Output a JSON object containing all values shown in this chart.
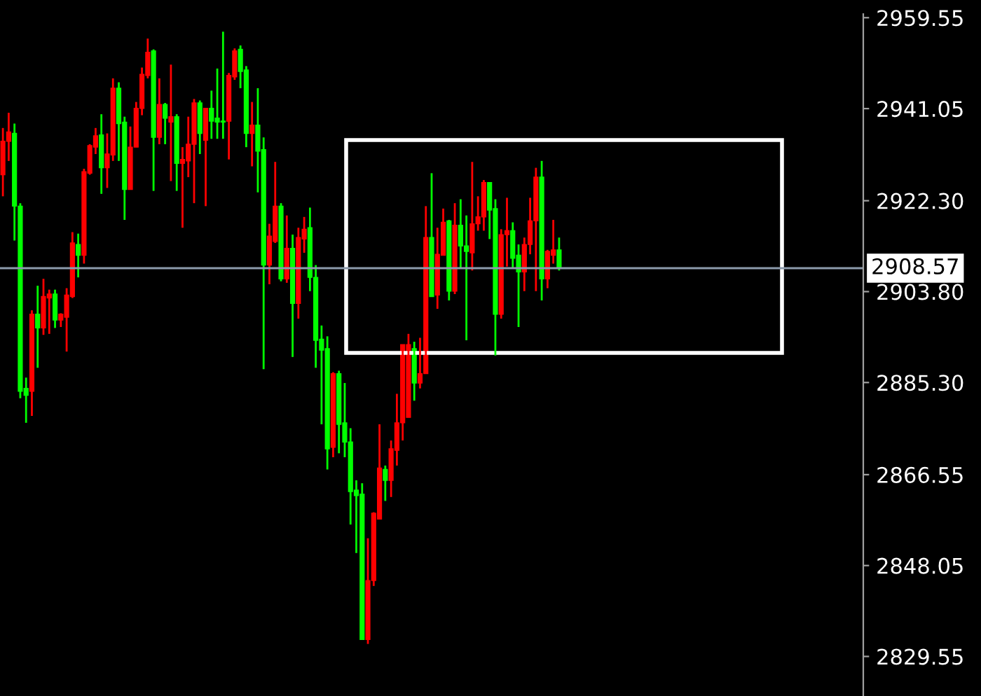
{
  "chart_data": {
    "type": "candlestick",
    "categories": [
      null,
      null,
      null,
      null,
      null,
      null,
      null,
      null,
      null,
      null,
      null,
      null,
      null,
      null,
      null,
      null,
      null,
      null,
      null,
      null,
      null,
      null,
      null,
      null,
      null,
      null,
      null,
      null,
      null,
      null,
      null,
      null,
      null,
      null,
      null,
      null,
      null,
      null,
      null,
      null,
      null,
      null,
      null,
      null,
      null,
      null,
      null,
      null,
      null,
      null,
      null,
      null,
      null,
      null,
      null,
      null,
      null,
      null,
      null,
      null,
      null,
      null,
      null,
      null,
      null,
      null,
      null,
      null,
      null,
      null,
      null,
      null,
      null,
      null,
      null,
      null,
      null,
      null,
      null,
      null,
      null,
      null,
      null,
      null,
      null,
      null,
      null,
      null,
      null,
      null,
      null,
      null,
      null,
      null,
      null,
      null,
      null,
      null,
      null,
      null,
      null,
      null,
      null,
      null,
      null,
      null,
      null,
      null,
      null,
      null,
      null,
      null,
      null,
      null,
      null,
      null,
      null,
      null,
      null,
      null,
      null,
      null,
      null,
      null,
      null,
      null,
      null,
      null,
      null,
      null,
      null,
      null,
      null,
      null,
      null,
      null,
      null,
      null,
      null,
      null,
      null,
      null,
      null,
      null,
      null,
      null,
      null,
      null,
      null
    ],
    "ohlc": [
      [
        2927.6,
        2937.1,
        2923.2,
        2934.4
      ],
      [
        2934.4,
        2940.2,
        2930.4,
        2936.3
      ],
      [
        2936.0,
        2938.0,
        2914.2,
        2921.2
      ],
      [
        2921.2,
        2921.8,
        2882.1,
        2883.5
      ],
      [
        2884.1,
        2886.3,
        2877.1,
        2882.7
      ],
      [
        2883.5,
        2900.0,
        2878.5,
        2899.2
      ],
      [
        2899.2,
        2905.0,
        2888.3,
        2896.4
      ],
      [
        2896.4,
        2906.4,
        2895.0,
        2902.8
      ],
      [
        2902.5,
        2904.2,
        2895.2,
        2903.3
      ],
      [
        2903.3,
        2904.2,
        2896.4,
        2898.0
      ],
      [
        2898.0,
        2899.4,
        2896.6,
        2899.2
      ],
      [
        2898.6,
        2904.5,
        2891.6,
        2903.1
      ],
      [
        2902.8,
        2915.9,
        2902.5,
        2913.7
      ],
      [
        2913.4,
        2915.6,
        2906.7,
        2911.2
      ],
      [
        2911.2,
        2928.8,
        2909.5,
        2928.2
      ],
      [
        2927.9,
        2933.8,
        2927.6,
        2933.5
      ],
      [
        2933.2,
        2937.1,
        2931.8,
        2935.5
      ],
      [
        2935.7,
        2939.9,
        2923.7,
        2929.0
      ],
      [
        2929.0,
        2936.0,
        2924.9,
        2931.8
      ],
      [
        2931.6,
        2947.2,
        2930.4,
        2945.2
      ],
      [
        2945.2,
        2946.4,
        2930.4,
        2938.0
      ],
      [
        2938.3,
        2939.4,
        2918.4,
        2924.6
      ],
      [
        2924.6,
        2937.4,
        2924.6,
        2933.2
      ],
      [
        2933.2,
        2942.4,
        2933.2,
        2941.1
      ],
      [
        2941.1,
        2949.4,
        2939.7,
        2948.0
      ],
      [
        2947.8,
        2955.3,
        2947.2,
        2952.5
      ],
      [
        2952.8,
        2953.1,
        2924.3,
        2935.2
      ],
      [
        2935.2,
        2947.2,
        2933.8,
        2941.9
      ],
      [
        2941.9,
        2942.2,
        2933.8,
        2939.1
      ],
      [
        2938.3,
        2950.0,
        2926.3,
        2939.4
      ],
      [
        2939.4,
        2939.9,
        2924.3,
        2929.9
      ],
      [
        2929.9,
        2933.2,
        2916.8,
        2930.7
      ],
      [
        2930.4,
        2939.4,
        2927.1,
        2933.8
      ],
      [
        2933.8,
        2943.0,
        2921.8,
        2942.2
      ],
      [
        2942.2,
        2942.7,
        2931.8,
        2936.0
      ],
      [
        2934.6,
        2941.1,
        2921.2,
        2941.1
      ],
      [
        2941.1,
        2944.7,
        2934.9,
        2938.5
      ],
      [
        2939.1,
        2949.2,
        2934.9,
        2938.3
      ],
      [
        2938.5,
        2956.7,
        2934.9,
        2938.3
      ],
      [
        2938.5,
        2948.3,
        2930.7,
        2947.8
      ],
      [
        2947.5,
        2953.3,
        2946.9,
        2952.8
      ],
      [
        2953.1,
        2953.9,
        2945.2,
        2948.6
      ],
      [
        2948.9,
        2949.7,
        2933.2,
        2936.0
      ],
      [
        2936.0,
        2942.4,
        2929.3,
        2937.7
      ],
      [
        2937.7,
        2945.2,
        2924.0,
        2932.4
      ],
      [
        2932.7,
        2935.2,
        2888.0,
        2909.2
      ],
      [
        2909.2,
        2917.6,
        2905.3,
        2915.1
      ],
      [
        2914.0,
        2930.2,
        2913.7,
        2921.2
      ],
      [
        2921.2,
        2921.8,
        2905.9,
        2906.4
      ],
      [
        2906.4,
        2919.3,
        2905.6,
        2912.6
      ],
      [
        2912.6,
        2915.4,
        2890.5,
        2901.4
      ],
      [
        2901.4,
        2916.8,
        2898.3,
        2914.8
      ],
      [
        2914.5,
        2919.0,
        2911.7,
        2916.5
      ],
      [
        2916.8,
        2920.9,
        2903.9,
        2906.7
      ],
      [
        2906.7,
        2909.2,
        2888.3,
        2893.9
      ],
      [
        2894.1,
        2896.9,
        2876.8,
        2891.9
      ],
      [
        2892.2,
        2894.7,
        2867.6,
        2871.8
      ],
      [
        2872.1,
        2887.4,
        2870.1,
        2887.1
      ],
      [
        2887.1,
        2887.7,
        2870.9,
        2876.8
      ],
      [
        2877.1,
        2885.2,
        2870.1,
        2873.2
      ],
      [
        2873.2,
        2876.0,
        2856.4,
        2863.1
      ],
      [
        2863.4,
        2865.4,
        2850.6,
        2862.3
      ],
      [
        2862.6,
        2864.8,
        2833.0,
        2833.0
      ],
      [
        2833.0,
        2853.6,
        2832.1,
        2845.0
      ],
      [
        2845.0,
        2858.9,
        2843.9,
        2858.7
      ],
      [
        2857.5,
        2876.8,
        2857.5,
        2867.9
      ],
      [
        2867.6,
        2868.4,
        2861.2,
        2865.4
      ],
      [
        2865.4,
        2873.5,
        2862.0,
        2871.8
      ],
      [
        2871.5,
        2883.0,
        2868.4,
        2877.1
      ],
      [
        2877.1,
        2893.0,
        2873.5,
        2893.0
      ],
      [
        2878.2,
        2895.2,
        2878.2,
        2893.0
      ],
      [
        2892.2,
        2893.6,
        2881.6,
        2885.2
      ],
      [
        2885.2,
        2894.4,
        2884.1,
        2887.1
      ],
      [
        2887.1,
        2921.2,
        2887.1,
        2914.8
      ],
      [
        2914.8,
        2927.9,
        2902.8,
        2902.8
      ],
      [
        2903.1,
        2916.8,
        2900.3,
        2911.4
      ],
      [
        2911.2,
        2920.7,
        2911.2,
        2917.9
      ],
      [
        2918.2,
        2918.4,
        2902.0,
        2903.9
      ],
      [
        2903.9,
        2921.8,
        2903.3,
        2917.3
      ],
      [
        2917.3,
        2922.6,
        2908.7,
        2913.1
      ],
      [
        2913.1,
        2919.3,
        2893.9,
        2912.0
      ],
      [
        2911.7,
        2930.2,
        2908.1,
        2917.6
      ],
      [
        2917.6,
        2923.2,
        2916.2,
        2919.0
      ],
      [
        2919.0,
        2926.5,
        2916.2,
        2926.0
      ],
      [
        2926.0,
        2926.0,
        2914.5,
        2920.4
      ],
      [
        2920.7,
        2922.6,
        2890.8,
        2899.2
      ],
      [
        2899.2,
        2916.5,
        2898.3,
        2915.4
      ],
      [
        2915.4,
        2922.9,
        2908.9,
        2916.2
      ],
      [
        2916.2,
        2917.9,
        2908.7,
        2910.6
      ],
      [
        2911.2,
        2913.4,
        2896.6,
        2907.8
      ],
      [
        2907.8,
        2914.8,
        2903.9,
        2913.4
      ],
      [
        2913.4,
        2922.9,
        2911.4,
        2918.2
      ],
      [
        2918.2,
        2929.0,
        2903.9,
        2927.1
      ],
      [
        2927.1,
        2930.4,
        2902.0,
        2906.4
      ],
      [
        2906.4,
        2912.3,
        2904.5,
        2912.0
      ],
      [
        2911.2,
        2918.4,
        2909.5,
        2912.3
      ],
      [
        2912.3,
        2914.8,
        2908.1,
        2908.6
      ],
      null,
      null,
      null,
      null,
      null,
      null,
      null,
      null,
      null,
      null,
      null,
      null,
      null,
      null,
      null,
      null,
      null,
      null,
      null,
      null,
      null,
      null,
      null,
      null,
      null,
      null,
      null,
      null,
      null,
      null,
      null,
      null,
      null,
      null,
      null,
      null,
      null,
      null,
      null,
      null,
      null,
      null,
      null,
      null,
      null,
      null,
      null,
      null,
      null,
      null,
      null,
      null
    ],
    "colors": [
      "#ff0000",
      "#ff0000",
      "#00ff00",
      "#00ff00",
      "#00ff00",
      "#ff0000",
      "#00ff00",
      "#ff0000",
      "#ff0000",
      "#00ff00",
      "#ff0000",
      "#ff0000",
      "#ff0000",
      "#00ff00",
      "#ff0000",
      "#ff0000",
      "#ff0000",
      "#00ff00",
      "#ff0000",
      "#ff0000",
      "#00ff00",
      "#00ff00",
      "#ff0000",
      "#ff0000",
      "#ff0000",
      "#ff0000",
      "#00ff00",
      "#ff0000",
      "#00ff00",
      "#ff0000",
      "#00ff00",
      "#ff0000",
      "#ff0000",
      "#ff0000",
      "#00ff00",
      "#ff0000",
      "#00ff00",
      "#00ff00",
      "#00ff00",
      "#ff0000",
      "#ff0000",
      "#00ff00",
      "#00ff00",
      "#ff0000",
      "#00ff00",
      "#00ff00",
      "#ff0000",
      "#ff0000",
      "#00ff00",
      "#ff0000",
      "#00ff00",
      "#ff0000",
      "#ff0000",
      "#00ff00",
      "#00ff00",
      "#00ff00",
      "#00ff00",
      "#ff0000",
      "#00ff00",
      "#00ff00",
      "#00ff00",
      "#00ff00",
      "#00ff00",
      "#ff0000",
      "#ff0000",
      "#ff0000",
      "#00ff00",
      "#ff0000",
      "#ff0000",
      "#ff0000",
      "#ff0000",
      "#00ff00",
      "#ff0000",
      "#ff0000",
      "#00ff00",
      "#ff0000",
      "#ff0000",
      "#00ff00",
      "#ff0000",
      "#00ff00",
      "#00ff00",
      "#ff0000",
      "#ff0000",
      "#ff0000",
      "#00ff00",
      "#00ff00",
      "#ff0000",
      "#ff0000",
      "#00ff00",
      "#00ff00",
      "#ff0000",
      "#ff0000",
      "#ff0000",
      "#00ff00",
      "#ff0000",
      "#ff0000",
      "#00ff00",
      null,
      null,
      null,
      null,
      null,
      null,
      null,
      null,
      null,
      null,
      null,
      null,
      null,
      null,
      null,
      null,
      null,
      null,
      null,
      null,
      null,
      null,
      null,
      null,
      null,
      null,
      null,
      null,
      null,
      null,
      null,
      null,
      null,
      null,
      null,
      null,
      null,
      null,
      null,
      null,
      null,
      null,
      null,
      null,
      null,
      null,
      null,
      null,
      null,
      null,
      null,
      null
    ],
    "ylim": [
      2821.5,
      2960.3
    ],
    "yticks": [
      {
        "value": 2959.55,
        "label": "2959.55"
      },
      {
        "value": 2941.05,
        "label": "2941.05"
      },
      {
        "value": 2922.3,
        "label": "2922.30"
      },
      {
        "value": 2903.8,
        "label": "2903.80"
      },
      {
        "value": 2885.3,
        "label": "2885.30"
      },
      {
        "value": 2866.55,
        "label": "2866.55"
      },
      {
        "value": 2848.05,
        "label": "2848.05"
      },
      {
        "value": 2829.55,
        "label": "2829.55"
      }
    ],
    "ref_lines": [
      {
        "axis": "y",
        "value": 2908.57,
        "label": "2908.57",
        "color": "#8c9aab"
      }
    ],
    "tick_labels": "y"
  }
}
